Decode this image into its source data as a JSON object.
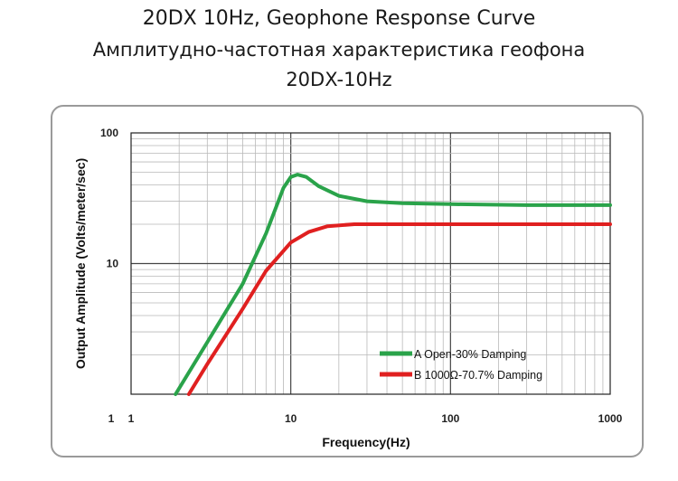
{
  "titles": {
    "line1": "20DX 10Hz, Geophone Response Curve",
    "line2": "Амплитудно-частотная характеристика геофона",
    "line3": "20DX-10Hz"
  },
  "chart_data": {
    "type": "line",
    "xlabel": "Frequency(Hz)",
    "ylabel": "Output Amplitude (Volts/meter/sec)",
    "x_scale": "log",
    "y_scale": "log",
    "xlim": [
      1,
      1000
    ],
    "ylim": [
      1,
      100
    ],
    "x_ticks": [
      "1",
      "1",
      "10",
      "100",
      "1000"
    ],
    "y_ticks": [
      "100",
      "10"
    ],
    "grid": true,
    "legend_placement": "bottom-right",
    "series": [
      {
        "name": "A Open-30% Damping",
        "color": "#2aa34a",
        "points": [
          [
            1.9,
            1
          ],
          [
            3,
            2.5
          ],
          [
            5,
            7
          ],
          [
            7,
            17
          ],
          [
            9,
            38
          ],
          [
            10,
            46
          ],
          [
            11,
            48
          ],
          [
            12.5,
            46
          ],
          [
            15,
            39
          ],
          [
            20,
            33
          ],
          [
            30,
            30
          ],
          [
            50,
            29
          ],
          [
            100,
            28.5
          ],
          [
            300,
            28
          ],
          [
            1000,
            28
          ]
        ]
      },
      {
        "name": "B 1000Ω-70.7% Damping",
        "color": "#e02020",
        "points": [
          [
            2.3,
            1
          ],
          [
            3,
            1.7
          ],
          [
            5,
            4.5
          ],
          [
            7,
            8.8
          ],
          [
            10,
            14.5
          ],
          [
            13,
            17.5
          ],
          [
            17,
            19.3
          ],
          [
            25,
            20
          ],
          [
            50,
            20
          ],
          [
            100,
            20
          ],
          [
            300,
            20
          ],
          [
            1000,
            20
          ]
        ]
      }
    ]
  }
}
